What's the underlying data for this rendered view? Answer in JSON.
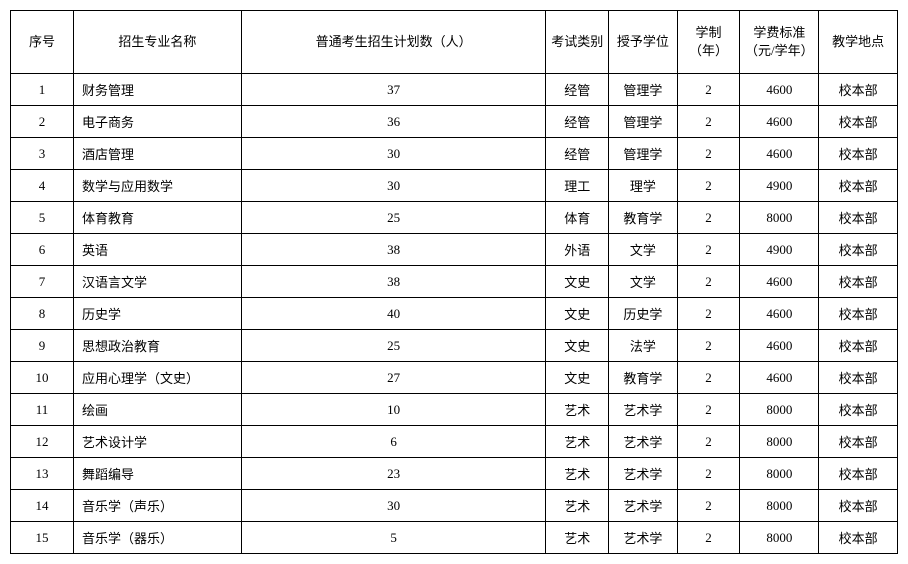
{
  "table": {
    "columns": [
      "序号",
      "招生专业名称",
      "普通考生招生计划数（人）",
      "考试类别",
      "授予学位",
      "学制（年）",
      "学费标准（元/学年）",
      "教学地点"
    ],
    "rows": [
      {
        "idx": "1",
        "major": "财务管理",
        "plan": "37",
        "examtype": "经管",
        "degree": "管理学",
        "years": "2",
        "fee": "4600",
        "loc": "校本部"
      },
      {
        "idx": "2",
        "major": "电子商务",
        "plan": "36",
        "examtype": "经管",
        "degree": "管理学",
        "years": "2",
        "fee": "4600",
        "loc": "校本部"
      },
      {
        "idx": "3",
        "major": "酒店管理",
        "plan": "30",
        "examtype": "经管",
        "degree": "管理学",
        "years": "2",
        "fee": "4600",
        "loc": "校本部"
      },
      {
        "idx": "4",
        "major": "数学与应用数学",
        "plan": "30",
        "examtype": "理工",
        "degree": "理学",
        "years": "2",
        "fee": "4900",
        "loc": "校本部"
      },
      {
        "idx": "5",
        "major": "体育教育",
        "plan": "25",
        "examtype": "体育",
        "degree": "教育学",
        "years": "2",
        "fee": "8000",
        "loc": "校本部"
      },
      {
        "idx": "6",
        "major": "英语",
        "plan": "38",
        "examtype": "外语",
        "degree": "文学",
        "years": "2",
        "fee": "4900",
        "loc": "校本部"
      },
      {
        "idx": "7",
        "major": "汉语言文学",
        "plan": "38",
        "examtype": "文史",
        "degree": "文学",
        "years": "2",
        "fee": "4600",
        "loc": "校本部"
      },
      {
        "idx": "8",
        "major": "历史学",
        "plan": "40",
        "examtype": "文史",
        "degree": "历史学",
        "years": "2",
        "fee": "4600",
        "loc": "校本部"
      },
      {
        "idx": "9",
        "major": "思想政治教育",
        "plan": "25",
        "examtype": "文史",
        "degree": "法学",
        "years": "2",
        "fee": "4600",
        "loc": "校本部"
      },
      {
        "idx": "10",
        "major": "应用心理学（文史）",
        "plan": "27",
        "examtype": "文史",
        "degree": "教育学",
        "years": "2",
        "fee": "4600",
        "loc": "校本部"
      },
      {
        "idx": "11",
        "major": "绘画",
        "plan": "10",
        "examtype": "艺术",
        "degree": "艺术学",
        "years": "2",
        "fee": "8000",
        "loc": "校本部"
      },
      {
        "idx": "12",
        "major": "艺术设计学",
        "plan": "6",
        "examtype": "艺术",
        "degree": "艺术学",
        "years": "2",
        "fee": "8000",
        "loc": "校本部"
      },
      {
        "idx": "13",
        "major": "舞蹈编导",
        "plan": "23",
        "examtype": "艺术",
        "degree": "艺术学",
        "years": "2",
        "fee": "8000",
        "loc": "校本部"
      },
      {
        "idx": "14",
        "major": "音乐学（声乐）",
        "plan": "30",
        "examtype": "艺术",
        "degree": "艺术学",
        "years": "2",
        "fee": "8000",
        "loc": "校本部"
      },
      {
        "idx": "15",
        "major": "音乐学（器乐）",
        "plan": "5",
        "examtype": "艺术",
        "degree": "艺术学",
        "years": "2",
        "fee": "8000",
        "loc": "校本部"
      }
    ]
  }
}
